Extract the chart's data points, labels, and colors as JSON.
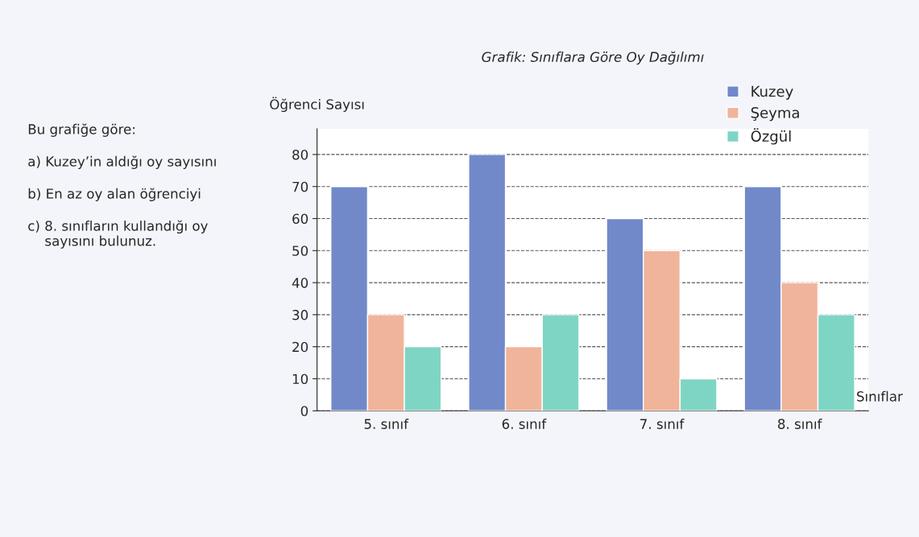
{
  "chart_data": {
    "type": "bar",
    "title": "Grafik: Sınıflara Göre Oy Dağılımı",
    "xlabel": "Sınıflar",
    "ylabel": "Öğrenci Sayısı",
    "categories": [
      "5. sınıf",
      "6. sınıf",
      "7. sınıf",
      "8. sınıf"
    ],
    "series": [
      {
        "name": "Kuzey",
        "color": "#7189c9",
        "values": [
          70,
          80,
          60,
          70
        ]
      },
      {
        "name": "Şeyma",
        "color": "#f0b49a",
        "values": [
          30,
          20,
          50,
          40
        ]
      },
      {
        "name": "Özgül",
        "color": "#7fd5c4",
        "values": [
          20,
          30,
          10,
          30
        ]
      }
    ],
    "ylim": [
      0,
      88
    ],
    "yticks": [
      0,
      10,
      20,
      30,
      40,
      50,
      60,
      70,
      80
    ],
    "grid": "y",
    "legend": "top right",
    "annotations": [
      "Bu grafiğe göre:",
      "a) Kuzey’in aldığı oy sayısını",
      "b) En az oy alan öğrenciyi",
      "c) 8. sınıfların kullandığı oy\n    sayısını bulunuz."
    ]
  }
}
